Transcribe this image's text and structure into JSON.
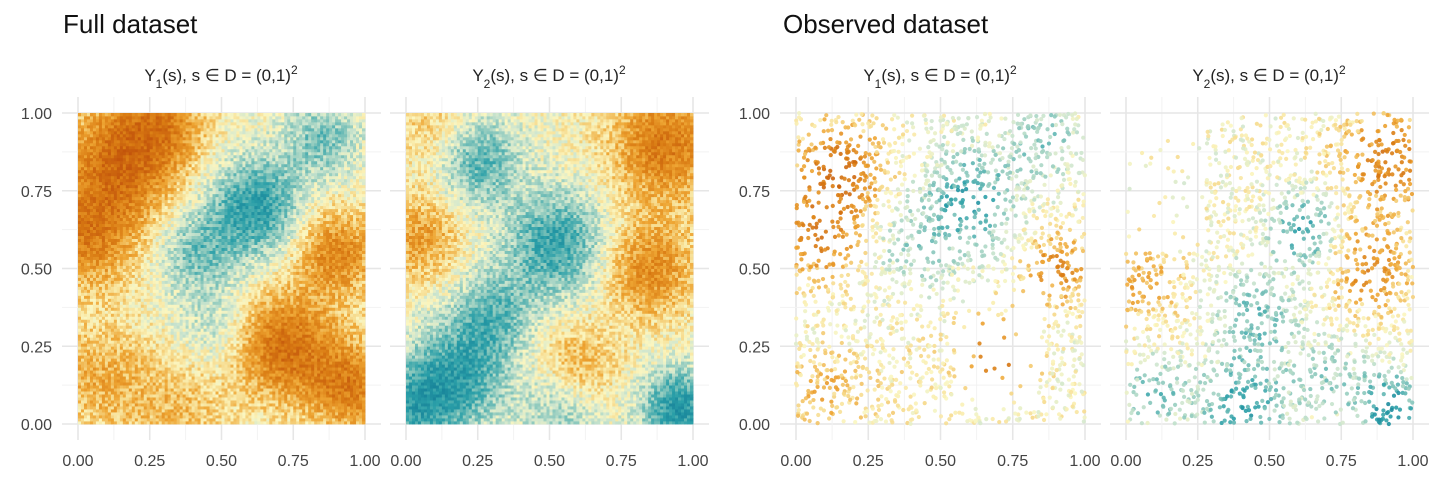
{
  "section_titles": {
    "left": "Full dataset",
    "right": "Observed dataset"
  },
  "panel_titles": {
    "y1": {
      "var": "Y",
      "sub": "1",
      "rest": "(s),  s ∈ D = (0,1)",
      "sup": "2"
    },
    "y2": {
      "var": "Y",
      "sub": "2",
      "rest": "(s),  s ∈ D = (0,1)",
      "sup": "2"
    }
  },
  "colors": {
    "palette": [
      "#0a6f8f",
      "#2a9fa8",
      "#8dc9bd",
      "#cfe6cf",
      "#fbf6c0",
      "#f6d98a",
      "#eea533",
      "#d97b13",
      "#b33a06"
    ],
    "grid_major": "#e6e6e6",
    "grid_minor": "#f2f2f2"
  },
  "chart_data": [
    {
      "type": "heatmap",
      "name": "full-y1",
      "section": "Full dataset",
      "title": "Y1(s),  s ∈ D = (0,1)^2",
      "xlim": [
        0,
        1
      ],
      "ylim": [
        0,
        1
      ],
      "x_ticks": [
        "0.00",
        "0.25",
        "0.50",
        "0.75",
        "1.00"
      ],
      "y_ticks": [
        "0.00",
        "0.25",
        "0.50",
        "0.75",
        "1.00"
      ],
      "grid": true,
      "field_centers": [
        {
          "x": 0.15,
          "y": 0.85,
          "value": 0.95,
          "sd": 0.14
        },
        {
          "x": 0.03,
          "y": 0.6,
          "value": 0.75,
          "sd": 0.12
        },
        {
          "x": 0.72,
          "y": 0.25,
          "value": 0.95,
          "sd": 0.12
        },
        {
          "x": 0.9,
          "y": 0.55,
          "value": 0.75,
          "sd": 0.1
        },
        {
          "x": 0.95,
          "y": 0.12,
          "value": 0.8,
          "sd": 0.1
        },
        {
          "x": 0.3,
          "y": 0.97,
          "value": 0.55,
          "sd": 0.1
        },
        {
          "x": 0.62,
          "y": 0.7,
          "value": -0.9,
          "sd": 0.11
        },
        {
          "x": 0.42,
          "y": 0.55,
          "value": -0.55,
          "sd": 0.1
        },
        {
          "x": 0.85,
          "y": 0.92,
          "value": -0.55,
          "sd": 0.09
        },
        {
          "x": 0.48,
          "y": 0.3,
          "value": -0.3,
          "sd": 0.09
        },
        {
          "x": 0.35,
          "y": 0.05,
          "value": 0.35,
          "sd": 0.12
        },
        {
          "x": 0.08,
          "y": 0.15,
          "value": 0.45,
          "sd": 0.12
        }
      ]
    },
    {
      "type": "heatmap",
      "name": "full-y2",
      "section": "Full dataset",
      "title": "Y2(s),  s ∈ D = (0,1)^2",
      "xlim": [
        0,
        1
      ],
      "ylim": [
        0,
        1
      ],
      "x_ticks": [
        "0.00",
        "0.25",
        "0.50",
        "0.75",
        "1.00"
      ],
      "y_ticks": [
        "0.00",
        "0.25",
        "0.50",
        "0.75",
        "1.00"
      ],
      "grid": true,
      "field_centers": [
        {
          "x": 0.9,
          "y": 0.9,
          "value": 0.85,
          "sd": 0.13
        },
        {
          "x": 0.85,
          "y": 0.5,
          "value": 0.7,
          "sd": 0.11
        },
        {
          "x": 0.05,
          "y": 0.6,
          "value": 0.55,
          "sd": 0.1
        },
        {
          "x": 0.6,
          "y": 0.18,
          "value": 0.5,
          "sd": 0.1
        },
        {
          "x": 0.1,
          "y": 0.95,
          "value": 0.3,
          "sd": 0.1
        },
        {
          "x": 0.25,
          "y": 0.85,
          "value": -0.7,
          "sd": 0.1
        },
        {
          "x": 0.52,
          "y": 0.58,
          "value": -0.85,
          "sd": 0.12
        },
        {
          "x": 0.18,
          "y": 0.15,
          "value": -0.8,
          "sd": 0.12
        },
        {
          "x": 0.3,
          "y": 0.35,
          "value": -0.6,
          "sd": 0.1
        },
        {
          "x": 0.95,
          "y": 0.05,
          "value": -1.0,
          "sd": 0.09
        },
        {
          "x": 0.02,
          "y": 0.05,
          "value": -0.7,
          "sd": 0.1
        },
        {
          "x": 0.55,
          "y": 0.05,
          "value": -0.5,
          "sd": 0.1
        }
      ]
    },
    {
      "type": "scatter",
      "name": "observed-y1",
      "section": "Observed dataset",
      "title": "Y1(s),  s ∈ D = (0,1)^2",
      "xlim": [
        0,
        1
      ],
      "ylim": [
        0,
        1
      ],
      "x_ticks": [
        "0.00",
        "0.25",
        "0.50",
        "0.75",
        "1.00"
      ],
      "y_ticks": [
        "0.00",
        "0.25",
        "0.50",
        "0.75",
        "1.00"
      ],
      "grid": true,
      "n_points": 2000,
      "sparse_region": {
        "x": [
          0.55,
          0.85
        ],
        "y": [
          0.05,
          0.45
        ]
      },
      "field_centers": [
        {
          "x": 0.15,
          "y": 0.82,
          "value": 1.0,
          "sd": 0.1
        },
        {
          "x": 0.08,
          "y": 0.6,
          "value": 0.8,
          "sd": 0.1
        },
        {
          "x": 0.9,
          "y": 0.5,
          "value": 0.75,
          "sd": 0.08
        },
        {
          "x": 0.7,
          "y": 0.22,
          "value": 0.9,
          "sd": 0.08
        },
        {
          "x": 0.6,
          "y": 0.72,
          "value": -0.85,
          "sd": 0.11
        },
        {
          "x": 0.85,
          "y": 0.92,
          "value": -0.5,
          "sd": 0.09
        },
        {
          "x": 0.4,
          "y": 0.55,
          "value": -0.35,
          "sd": 0.1
        },
        {
          "x": 0.1,
          "y": 0.1,
          "value": 0.4,
          "sd": 0.1
        },
        {
          "x": 0.4,
          "y": 0.15,
          "value": 0.1,
          "sd": 0.12
        }
      ]
    },
    {
      "type": "scatter",
      "name": "observed-y2",
      "section": "Observed dataset",
      "title": "Y2(s),  s ∈ D = (0,1)^2",
      "xlim": [
        0,
        1
      ],
      "ylim": [
        0,
        1
      ],
      "x_ticks": [
        "0.00",
        "0.25",
        "0.50",
        "0.75",
        "1.00"
      ],
      "y_ticks": [
        "0.00",
        "0.25",
        "0.50",
        "0.75",
        "1.00"
      ],
      "grid": true,
      "n_points": 2000,
      "sparse_region": {
        "x": [
          0.0,
          0.28
        ],
        "y": [
          0.55,
          1.0
        ]
      },
      "field_centers": [
        {
          "x": 0.92,
          "y": 0.85,
          "value": 0.8,
          "sd": 0.12
        },
        {
          "x": 0.85,
          "y": 0.5,
          "value": 0.7,
          "sd": 0.1
        },
        {
          "x": 0.05,
          "y": 0.45,
          "value": 0.5,
          "sd": 0.1
        },
        {
          "x": 0.62,
          "y": 0.62,
          "value": -0.85,
          "sd": 0.08
        },
        {
          "x": 0.45,
          "y": 0.35,
          "value": -0.6,
          "sd": 0.1
        },
        {
          "x": 0.4,
          "y": 0.05,
          "value": -0.9,
          "sd": 0.1
        },
        {
          "x": 0.92,
          "y": 0.05,
          "value": -1.0,
          "sd": 0.08
        },
        {
          "x": 0.7,
          "y": 0.15,
          "value": -0.4,
          "sd": 0.1
        },
        {
          "x": 0.1,
          "y": 0.1,
          "value": -0.6,
          "sd": 0.08
        }
      ]
    }
  ]
}
